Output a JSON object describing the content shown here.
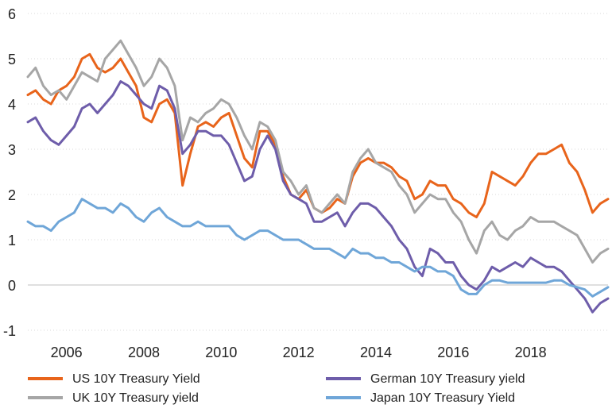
{
  "chart_data": {
    "type": "line",
    "title": "",
    "xlabel": "",
    "ylabel": "",
    "xlim": [
      2005.0,
      2020.0
    ],
    "ylim": [
      -1,
      6
    ],
    "x_ticks": [
      2006,
      2008,
      2010,
      2012,
      2014,
      2016,
      2018
    ],
    "y_ticks": [
      -1,
      0,
      1,
      2,
      3,
      4,
      5,
      6
    ],
    "grid": "horizontal-dotted",
    "legend_position": "bottom",
    "series": [
      {
        "name": "US 10Y Treasury Yield",
        "color": "#E8641B",
        "points": [
          [
            2005.0,
            4.2
          ],
          [
            2005.2,
            4.3
          ],
          [
            2005.4,
            4.1
          ],
          [
            2005.6,
            4.0
          ],
          [
            2005.8,
            4.3
          ],
          [
            2006.0,
            4.4
          ],
          [
            2006.2,
            4.6
          ],
          [
            2006.4,
            5.0
          ],
          [
            2006.6,
            5.1
          ],
          [
            2006.8,
            4.8
          ],
          [
            2007.0,
            4.7
          ],
          [
            2007.2,
            4.8
          ],
          [
            2007.4,
            5.0
          ],
          [
            2007.6,
            4.7
          ],
          [
            2007.8,
            4.4
          ],
          [
            2008.0,
            3.7
          ],
          [
            2008.2,
            3.6
          ],
          [
            2008.4,
            4.0
          ],
          [
            2008.6,
            4.1
          ],
          [
            2008.8,
            3.8
          ],
          [
            2009.0,
            2.2
          ],
          [
            2009.2,
            2.9
          ],
          [
            2009.4,
            3.5
          ],
          [
            2009.6,
            3.6
          ],
          [
            2009.8,
            3.5
          ],
          [
            2010.0,
            3.7
          ],
          [
            2010.2,
            3.8
          ],
          [
            2010.4,
            3.3
          ],
          [
            2010.6,
            2.8
          ],
          [
            2010.8,
            2.6
          ],
          [
            2011.0,
            3.4
          ],
          [
            2011.2,
            3.4
          ],
          [
            2011.4,
            3.1
          ],
          [
            2011.6,
            2.4
          ],
          [
            2011.8,
            2.0
          ],
          [
            2012.0,
            1.9
          ],
          [
            2012.2,
            2.1
          ],
          [
            2012.4,
            1.7
          ],
          [
            2012.6,
            1.6
          ],
          [
            2012.8,
            1.7
          ],
          [
            2013.0,
            1.9
          ],
          [
            2013.2,
            1.8
          ],
          [
            2013.4,
            2.4
          ],
          [
            2013.6,
            2.7
          ],
          [
            2013.8,
            2.8
          ],
          [
            2014.0,
            2.7
          ],
          [
            2014.2,
            2.7
          ],
          [
            2014.4,
            2.6
          ],
          [
            2014.6,
            2.4
          ],
          [
            2014.8,
            2.3
          ],
          [
            2015.0,
            1.9
          ],
          [
            2015.2,
            2.0
          ],
          [
            2015.4,
            2.3
          ],
          [
            2015.6,
            2.2
          ],
          [
            2015.8,
            2.2
          ],
          [
            2016.0,
            1.9
          ],
          [
            2016.2,
            1.8
          ],
          [
            2016.4,
            1.6
          ],
          [
            2016.6,
            1.5
          ],
          [
            2016.8,
            1.8
          ],
          [
            2017.0,
            2.5
          ],
          [
            2017.2,
            2.4
          ],
          [
            2017.4,
            2.3
          ],
          [
            2017.6,
            2.2
          ],
          [
            2017.8,
            2.4
          ],
          [
            2018.0,
            2.7
          ],
          [
            2018.2,
            2.9
          ],
          [
            2018.4,
            2.9
          ],
          [
            2018.6,
            3.0
          ],
          [
            2018.8,
            3.1
          ],
          [
            2019.0,
            2.7
          ],
          [
            2019.2,
            2.5
          ],
          [
            2019.4,
            2.1
          ],
          [
            2019.6,
            1.6
          ],
          [
            2019.8,
            1.8
          ],
          [
            2020.0,
            1.9
          ]
        ]
      },
      {
        "name": "UK 10Y Treasury yield",
        "color": "#A6A6A6",
        "points": [
          [
            2005.0,
            4.6
          ],
          [
            2005.2,
            4.8
          ],
          [
            2005.4,
            4.4
          ],
          [
            2005.6,
            4.2
          ],
          [
            2005.8,
            4.3
          ],
          [
            2006.0,
            4.1
          ],
          [
            2006.2,
            4.4
          ],
          [
            2006.4,
            4.7
          ],
          [
            2006.6,
            4.6
          ],
          [
            2006.8,
            4.5
          ],
          [
            2007.0,
            5.0
          ],
          [
            2007.2,
            5.2
          ],
          [
            2007.4,
            5.4
          ],
          [
            2007.6,
            5.1
          ],
          [
            2007.8,
            4.8
          ],
          [
            2008.0,
            4.4
          ],
          [
            2008.2,
            4.6
          ],
          [
            2008.4,
            5.0
          ],
          [
            2008.6,
            4.8
          ],
          [
            2008.8,
            4.4
          ],
          [
            2009.0,
            3.2
          ],
          [
            2009.2,
            3.7
          ],
          [
            2009.4,
            3.6
          ],
          [
            2009.6,
            3.8
          ],
          [
            2009.8,
            3.9
          ],
          [
            2010.0,
            4.1
          ],
          [
            2010.2,
            4.0
          ],
          [
            2010.4,
            3.7
          ],
          [
            2010.6,
            3.3
          ],
          [
            2010.8,
            3.0
          ],
          [
            2011.0,
            3.6
          ],
          [
            2011.2,
            3.5
          ],
          [
            2011.4,
            3.2
          ],
          [
            2011.6,
            2.5
          ],
          [
            2011.8,
            2.3
          ],
          [
            2012.0,
            2.0
          ],
          [
            2012.2,
            2.2
          ],
          [
            2012.4,
            1.7
          ],
          [
            2012.6,
            1.6
          ],
          [
            2012.8,
            1.8
          ],
          [
            2013.0,
            2.0
          ],
          [
            2013.2,
            1.8
          ],
          [
            2013.4,
            2.5
          ],
          [
            2013.6,
            2.8
          ],
          [
            2013.8,
            3.0
          ],
          [
            2014.0,
            2.7
          ],
          [
            2014.2,
            2.6
          ],
          [
            2014.4,
            2.5
          ],
          [
            2014.6,
            2.2
          ],
          [
            2014.8,
            2.0
          ],
          [
            2015.0,
            1.6
          ],
          [
            2015.2,
            1.8
          ],
          [
            2015.4,
            2.0
          ],
          [
            2015.6,
            1.9
          ],
          [
            2015.8,
            1.9
          ],
          [
            2016.0,
            1.6
          ],
          [
            2016.2,
            1.4
          ],
          [
            2016.4,
            1.0
          ],
          [
            2016.6,
            0.7
          ],
          [
            2016.8,
            1.2
          ],
          [
            2017.0,
            1.4
          ],
          [
            2017.2,
            1.1
          ],
          [
            2017.4,
            1.0
          ],
          [
            2017.6,
            1.2
          ],
          [
            2017.8,
            1.3
          ],
          [
            2018.0,
            1.5
          ],
          [
            2018.2,
            1.4
          ],
          [
            2018.4,
            1.4
          ],
          [
            2018.6,
            1.4
          ],
          [
            2018.8,
            1.3
          ],
          [
            2019.0,
            1.2
          ],
          [
            2019.2,
            1.1
          ],
          [
            2019.4,
            0.8
          ],
          [
            2019.6,
            0.5
          ],
          [
            2019.8,
            0.7
          ],
          [
            2020.0,
            0.8
          ]
        ]
      },
      {
        "name": "German 10Y Treasury yield",
        "color": "#6E5DAA",
        "points": [
          [
            2005.0,
            3.6
          ],
          [
            2005.2,
            3.7
          ],
          [
            2005.4,
            3.4
          ],
          [
            2005.6,
            3.2
          ],
          [
            2005.8,
            3.1
          ],
          [
            2006.0,
            3.3
          ],
          [
            2006.2,
            3.5
          ],
          [
            2006.4,
            3.9
          ],
          [
            2006.6,
            4.0
          ],
          [
            2006.8,
            3.8
          ],
          [
            2007.0,
            4.0
          ],
          [
            2007.2,
            4.2
          ],
          [
            2007.4,
            4.5
          ],
          [
            2007.6,
            4.4
          ],
          [
            2007.8,
            4.2
          ],
          [
            2008.0,
            4.0
          ],
          [
            2008.2,
            3.9
          ],
          [
            2008.4,
            4.4
          ],
          [
            2008.6,
            4.3
          ],
          [
            2008.8,
            3.9
          ],
          [
            2009.0,
            2.9
          ],
          [
            2009.2,
            3.1
          ],
          [
            2009.4,
            3.4
          ],
          [
            2009.6,
            3.4
          ],
          [
            2009.8,
            3.3
          ],
          [
            2010.0,
            3.3
          ],
          [
            2010.2,
            3.1
          ],
          [
            2010.4,
            2.7
          ],
          [
            2010.6,
            2.3
          ],
          [
            2010.8,
            2.4
          ],
          [
            2011.0,
            3.0
          ],
          [
            2011.2,
            3.3
          ],
          [
            2011.4,
            3.0
          ],
          [
            2011.6,
            2.3
          ],
          [
            2011.8,
            2.0
          ],
          [
            2012.0,
            1.9
          ],
          [
            2012.2,
            1.8
          ],
          [
            2012.4,
            1.4
          ],
          [
            2012.6,
            1.4
          ],
          [
            2012.8,
            1.5
          ],
          [
            2013.0,
            1.6
          ],
          [
            2013.2,
            1.3
          ],
          [
            2013.4,
            1.6
          ],
          [
            2013.6,
            1.8
          ],
          [
            2013.8,
            1.8
          ],
          [
            2014.0,
            1.7
          ],
          [
            2014.2,
            1.5
          ],
          [
            2014.4,
            1.3
          ],
          [
            2014.6,
            1.0
          ],
          [
            2014.8,
            0.8
          ],
          [
            2015.0,
            0.4
          ],
          [
            2015.2,
            0.2
          ],
          [
            2015.4,
            0.8
          ],
          [
            2015.6,
            0.7
          ],
          [
            2015.8,
            0.5
          ],
          [
            2016.0,
            0.5
          ],
          [
            2016.2,
            0.2
          ],
          [
            2016.4,
            0.0
          ],
          [
            2016.6,
            -0.1
          ],
          [
            2016.8,
            0.1
          ],
          [
            2017.0,
            0.4
          ],
          [
            2017.2,
            0.3
          ],
          [
            2017.4,
            0.4
          ],
          [
            2017.6,
            0.5
          ],
          [
            2017.8,
            0.4
          ],
          [
            2018.0,
            0.6
          ],
          [
            2018.2,
            0.5
          ],
          [
            2018.4,
            0.4
          ],
          [
            2018.6,
            0.4
          ],
          [
            2018.8,
            0.3
          ],
          [
            2019.0,
            0.1
          ],
          [
            2019.2,
            -0.1
          ],
          [
            2019.4,
            -0.3
          ],
          [
            2019.6,
            -0.6
          ],
          [
            2019.8,
            -0.4
          ],
          [
            2020.0,
            -0.3
          ]
        ]
      },
      {
        "name": "Japan 10Y Treasury Yield",
        "color": "#6FA6D8",
        "points": [
          [
            2005.0,
            1.4
          ],
          [
            2005.2,
            1.3
          ],
          [
            2005.4,
            1.3
          ],
          [
            2005.6,
            1.2
          ],
          [
            2005.8,
            1.4
          ],
          [
            2006.0,
            1.5
          ],
          [
            2006.2,
            1.6
          ],
          [
            2006.4,
            1.9
          ],
          [
            2006.6,
            1.8
          ],
          [
            2006.8,
            1.7
          ],
          [
            2007.0,
            1.7
          ],
          [
            2007.2,
            1.6
          ],
          [
            2007.4,
            1.8
          ],
          [
            2007.6,
            1.7
          ],
          [
            2007.8,
            1.5
          ],
          [
            2008.0,
            1.4
          ],
          [
            2008.2,
            1.6
          ],
          [
            2008.4,
            1.7
          ],
          [
            2008.6,
            1.5
          ],
          [
            2008.8,
            1.4
          ],
          [
            2009.0,
            1.3
          ],
          [
            2009.2,
            1.3
          ],
          [
            2009.4,
            1.4
          ],
          [
            2009.6,
            1.3
          ],
          [
            2009.8,
            1.3
          ],
          [
            2010.0,
            1.3
          ],
          [
            2010.2,
            1.3
          ],
          [
            2010.4,
            1.1
          ],
          [
            2010.6,
            1.0
          ],
          [
            2010.8,
            1.1
          ],
          [
            2011.0,
            1.2
          ],
          [
            2011.2,
            1.2
          ],
          [
            2011.4,
            1.1
          ],
          [
            2011.6,
            1.0
          ],
          [
            2011.8,
            1.0
          ],
          [
            2012.0,
            1.0
          ],
          [
            2012.2,
            0.9
          ],
          [
            2012.4,
            0.8
          ],
          [
            2012.6,
            0.8
          ],
          [
            2012.8,
            0.8
          ],
          [
            2013.0,
            0.7
          ],
          [
            2013.2,
            0.6
          ],
          [
            2013.4,
            0.8
          ],
          [
            2013.6,
            0.7
          ],
          [
            2013.8,
            0.7
          ],
          [
            2014.0,
            0.6
          ],
          [
            2014.2,
            0.6
          ],
          [
            2014.4,
            0.5
          ],
          [
            2014.6,
            0.5
          ],
          [
            2014.8,
            0.4
          ],
          [
            2015.0,
            0.3
          ],
          [
            2015.2,
            0.4
          ],
          [
            2015.4,
            0.4
          ],
          [
            2015.6,
            0.3
          ],
          [
            2015.8,
            0.3
          ],
          [
            2016.0,
            0.2
          ],
          [
            2016.2,
            -0.1
          ],
          [
            2016.4,
            -0.2
          ],
          [
            2016.6,
            -0.2
          ],
          [
            2016.8,
            0.0
          ],
          [
            2017.0,
            0.1
          ],
          [
            2017.2,
            0.1
          ],
          [
            2017.4,
            0.05
          ],
          [
            2017.6,
            0.05
          ],
          [
            2017.8,
            0.05
          ],
          [
            2018.0,
            0.05
          ],
          [
            2018.2,
            0.05
          ],
          [
            2018.4,
            0.05
          ],
          [
            2018.6,
            0.1
          ],
          [
            2018.8,
            0.1
          ],
          [
            2019.0,
            0.0
          ],
          [
            2019.2,
            -0.05
          ],
          [
            2019.4,
            -0.1
          ],
          [
            2019.6,
            -0.25
          ],
          [
            2019.8,
            -0.15
          ],
          [
            2020.0,
            -0.05
          ]
        ]
      }
    ]
  }
}
